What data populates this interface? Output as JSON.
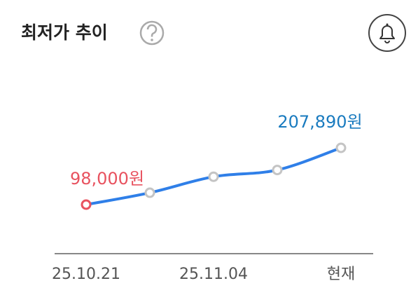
{
  "chart_data": {
    "type": "line",
    "title": "최저가 추이",
    "categories": [
      "25.10.21",
      null,
      "25.11.04",
      null,
      "현재"
    ],
    "series": [
      {
        "color": "#2f7fe8",
        "values": [
          98000,
          121000,
          152000,
          165000,
          207890
        ],
        "value_labels": [
          "98,000원",
          null,
          null,
          null,
          "207,890원"
        ]
      }
    ],
    "marker_color": "#c4c4c4",
    "low_color": "#e8525f",
    "current_color": "#1a7bbf"
  }
}
